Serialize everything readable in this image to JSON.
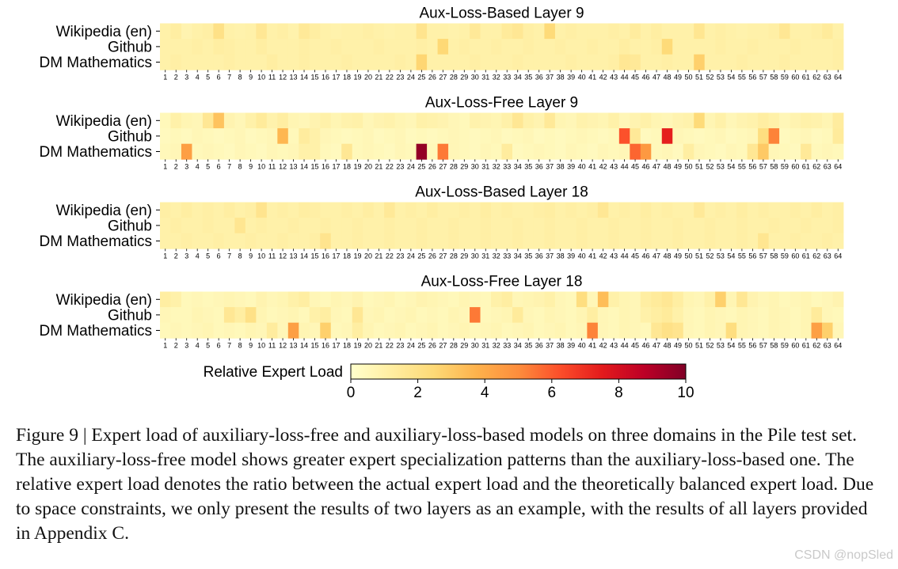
{
  "chart_data": {
    "type": "heatmap",
    "colorbar": {
      "label": "Relative Expert Load",
      "range": [
        0,
        10
      ],
      "ticks": [
        "0",
        "2",
        "4",
        "6",
        "8",
        "10"
      ],
      "colormap": [
        "#ffffcc",
        "#ffeda0",
        "#fed976",
        "#feb24c",
        "#fd8d3c",
        "#fc4e2a",
        "#e31a1c",
        "#bd0026",
        "#800026"
      ]
    },
    "domains": [
      "Wikipedia (en)",
      "Github",
      "DM Mathematics"
    ],
    "experts": [
      "1",
      "2",
      "3",
      "4",
      "5",
      "6",
      "7",
      "8",
      "9",
      "10",
      "11",
      "12",
      "13",
      "14",
      "15",
      "16",
      "17",
      "18",
      "19",
      "20",
      "21",
      "22",
      "23",
      "24",
      "25",
      "26",
      "27",
      "28",
      "29",
      "30",
      "31",
      "32",
      "33",
      "34",
      "35",
      "36",
      "37",
      "38",
      "39",
      "40",
      "41",
      "42",
      "43",
      "44",
      "45",
      "46",
      "47",
      "48",
      "49",
      "50",
      "51",
      "52",
      "53",
      "54",
      "55",
      "56",
      "57",
      "58",
      "59",
      "60",
      "61",
      "62",
      "63",
      "64"
    ],
    "panels": [
      {
        "title": "Aux-Loss-Based Layer 9",
        "values": [
          [
            1.0,
            1.2,
            0.8,
            1.0,
            1.1,
            2.0,
            1.0,
            0.9,
            1.0,
            1.6,
            1.0,
            1.1,
            0.9,
            1.5,
            1.2,
            1.0,
            0.9,
            1.0,
            1.0,
            1.1,
            1.0,
            0.9,
            1.0,
            1.0,
            1.8,
            1.0,
            1.0,
            0.9,
            1.0,
            1.5,
            1.0,
            1.0,
            1.4,
            1.6,
            1.1,
            1.0,
            2.4,
            1.0,
            1.1,
            1.0,
            1.0,
            1.0,
            1.1,
            1.0,
            1.3,
            1.0,
            1.2,
            1.0,
            1.0,
            1.0,
            1.7,
            1.0,
            1.1,
            1.0,
            0.9,
            1.0,
            1.0,
            1.1,
            1.6,
            1.0,
            1.0,
            1.1,
            1.4,
            1.0
          ],
          [
            1.0,
            1.0,
            1.0,
            1.1,
            1.0,
            1.2,
            1.1,
            1.0,
            1.0,
            1.2,
            1.0,
            1.0,
            1.0,
            1.1,
            1.0,
            1.0,
            1.1,
            1.0,
            1.0,
            1.0,
            1.1,
            1.0,
            1.0,
            1.0,
            1.1,
            1.0,
            2.5,
            1.0,
            1.1,
            1.0,
            1.0,
            1.1,
            1.0,
            1.0,
            1.1,
            1.0,
            1.0,
            1.1,
            1.0,
            1.0,
            1.1,
            1.0,
            1.0,
            1.2,
            1.0,
            1.0,
            1.1,
            2.4,
            1.0,
            1.0,
            1.0,
            1.0,
            1.1,
            1.0,
            1.0,
            1.1,
            1.0,
            1.0,
            1.0,
            1.1,
            1.0,
            1.0,
            1.0,
            1.1
          ],
          [
            1.0,
            1.1,
            1.0,
            1.0,
            1.0,
            1.0,
            1.1,
            1.0,
            1.0,
            1.0,
            1.2,
            1.0,
            1.0,
            1.1,
            1.0,
            1.0,
            1.0,
            1.1,
            1.0,
            1.0,
            1.0,
            1.0,
            1.1,
            1.0,
            2.6,
            1.0,
            1.0,
            1.0,
            1.0,
            1.1,
            1.0,
            1.0,
            1.0,
            1.1,
            1.0,
            1.0,
            1.0,
            1.0,
            1.1,
            1.0,
            1.0,
            1.0,
            1.1,
            1.6,
            1.5,
            1.0,
            1.0,
            1.1,
            1.0,
            1.0,
            2.8,
            1.0,
            1.0,
            1.0,
            1.1,
            1.0,
            1.0,
            1.0,
            1.1,
            1.0,
            1.0,
            1.0,
            1.0,
            1.1
          ]
        ]
      },
      {
        "title": "Aux-Loss-Free Layer 9",
        "values": [
          [
            0.5,
            1.0,
            0.7,
            0.6,
            1.6,
            3.2,
            0.8,
            0.6,
            1.0,
            1.4,
            0.9,
            1.2,
            0.7,
            0.6,
            0.8,
            1.0,
            0.7,
            0.9,
            1.0,
            0.6,
            0.8,
            0.9,
            0.7,
            0.6,
            1.0,
            0.9,
            0.8,
            0.6,
            0.5,
            0.9,
            0.8,
            0.7,
            1.0,
            1.6,
            1.0,
            0.8,
            1.5,
            0.7,
            0.6,
            0.9,
            0.8,
            0.7,
            1.0,
            0.6,
            0.8,
            1.0,
            0.7,
            0.6,
            0.8,
            0.9,
            2.4,
            0.7,
            1.0,
            0.6,
            0.8,
            0.9,
            1.2,
            1.0,
            0.6,
            0.8,
            1.0,
            0.9,
            0.7,
            1.3
          ],
          [
            0.4,
            0.5,
            0.4,
            0.6,
            0.5,
            0.4,
            0.5,
            0.6,
            0.4,
            0.5,
            0.6,
            3.6,
            0.5,
            1.3,
            1.0,
            0.6,
            0.5,
            0.4,
            0.5,
            0.6,
            0.4,
            0.5,
            0.6,
            0.4,
            0.5,
            0.4,
            0.5,
            0.6,
            0.5,
            0.4,
            0.5,
            0.6,
            0.4,
            0.5,
            0.6,
            0.4,
            0.5,
            0.4,
            0.5,
            0.6,
            0.5,
            0.4,
            0.5,
            6.2,
            1.5,
            0.4,
            0.5,
            7.4,
            0.6,
            0.5,
            0.4,
            0.5,
            0.6,
            0.4,
            0.5,
            0.6,
            2.2,
            5.2,
            0.4,
            0.5,
            0.6,
            0.4,
            0.5,
            1.4
          ],
          [
            0.5,
            0.6,
            4.4,
            0.5,
            0.6,
            0.5,
            0.4,
            0.6,
            0.5,
            0.4,
            0.6,
            0.5,
            0.6,
            1.0,
            1.0,
            0.5,
            0.4,
            1.6,
            0.5,
            0.6,
            0.5,
            0.4,
            0.6,
            0.5,
            9.6,
            0.5,
            5.4,
            0.6,
            0.5,
            0.4,
            0.6,
            0.5,
            1.3,
            0.4,
            0.5,
            0.6,
            0.5,
            0.4,
            0.6,
            0.5,
            0.4,
            0.6,
            0.5,
            0.6,
            5.8,
            4.6,
            0.5,
            0.6,
            0.4,
            1.2,
            0.6,
            0.5,
            0.4,
            0.6,
            0.5,
            1.6,
            3.0,
            0.6,
            0.5,
            0.4,
            1.5,
            0.5,
            0.6,
            0.5
          ]
        ]
      },
      {
        "title": "Aux-Loss-Based Layer 18",
        "values": [
          [
            1.1,
            1.0,
            1.2,
            1.0,
            1.1,
            1.0,
            1.2,
            1.0,
            1.1,
            1.8,
            1.0,
            1.1,
            1.0,
            1.2,
            1.1,
            1.0,
            1.0,
            1.1,
            1.0,
            1.2,
            1.0,
            1.5,
            1.0,
            1.1,
            1.0,
            1.2,
            1.0,
            1.0,
            1.1,
            1.0,
            1.2,
            1.0,
            1.1,
            1.0,
            1.0,
            1.1,
            1.2,
            1.0,
            1.1,
            1.0,
            1.1,
            1.6,
            1.0,
            1.1,
            1.0,
            1.2,
            1.0,
            1.1,
            1.0,
            1.0,
            1.5,
            1.0,
            1.1,
            1.0,
            1.2,
            1.0,
            1.1,
            1.0,
            1.0,
            1.1,
            1.0,
            1.2,
            1.0,
            1.1
          ],
          [
            1.0,
            1.1,
            1.0,
            1.0,
            1.1,
            1.0,
            1.0,
            1.7,
            1.0,
            1.1,
            1.0,
            1.0,
            1.1,
            1.0,
            1.0,
            1.1,
            1.0,
            1.0,
            1.1,
            1.0,
            1.0,
            1.1,
            1.0,
            1.0,
            1.1,
            1.0,
            1.0,
            1.1,
            1.0,
            1.0,
            1.1,
            1.0,
            1.0,
            1.1,
            1.0,
            1.0,
            1.1,
            1.0,
            1.0,
            1.1,
            1.0,
            1.0,
            1.1,
            1.0,
            1.0,
            1.1,
            1.0,
            1.0,
            1.1,
            1.0,
            1.0,
            1.1,
            1.0,
            1.0,
            1.1,
            1.0,
            1.0,
            1.1,
            1.0,
            1.0,
            1.1,
            1.0,
            1.0,
            1.1
          ],
          [
            1.0,
            1.0,
            1.1,
            1.0,
            1.0,
            1.1,
            1.0,
            1.0,
            1.1,
            1.0,
            1.0,
            1.1,
            1.0,
            1.0,
            1.1,
            1.8,
            1.0,
            1.0,
            1.1,
            1.0,
            1.0,
            1.1,
            1.0,
            1.0,
            1.1,
            1.0,
            1.0,
            1.1,
            1.0,
            1.0,
            1.1,
            1.0,
            1.0,
            1.1,
            1.0,
            1.0,
            1.1,
            1.0,
            1.0,
            1.1,
            1.0,
            1.0,
            1.1,
            1.0,
            1.0,
            1.1,
            1.0,
            1.0,
            1.1,
            1.0,
            1.0,
            1.1,
            1.0,
            1.0,
            1.1,
            1.0,
            1.7,
            1.0,
            1.0,
            1.1,
            1.0,
            1.0,
            1.1,
            1.0
          ]
        ]
      },
      {
        "title": "Aux-Loss-Free Layer 18",
        "values": [
          [
            1.2,
            1.0,
            0.5,
            0.6,
            0.5,
            0.6,
            0.7,
            0.6,
            0.5,
            0.8,
            0.6,
            0.7,
            1.0,
            1.2,
            0.6,
            0.5,
            0.7,
            0.6,
            0.8,
            0.5,
            0.6,
            0.7,
            0.5,
            0.6,
            0.8,
            0.7,
            0.6,
            0.5,
            0.7,
            0.6,
            0.5,
            1.0,
            1.2,
            0.6,
            0.7,
            0.8,
            1.0,
            0.6,
            0.5,
            2.2,
            0.6,
            3.4,
            1.0,
            0.7,
            0.6,
            1.2,
            1.4,
            1.6,
            1.2,
            0.7,
            0.6,
            1.0,
            2.8,
            0.7,
            1.6,
            0.8,
            0.6,
            0.7,
            0.5,
            0.6,
            0.7,
            0.5,
            0.6,
            0.8
          ],
          [
            0.6,
            0.5,
            0.5,
            0.7,
            0.6,
            0.5,
            1.6,
            1.2,
            2.0,
            0.7,
            0.5,
            0.6,
            0.7,
            0.5,
            1.0,
            1.2,
            0.6,
            0.5,
            1.6,
            0.6,
            0.7,
            0.5,
            0.6,
            0.7,
            0.5,
            0.6,
            0.5,
            0.7,
            0.6,
            5.4,
            0.5,
            0.6,
            0.7,
            1.4,
            0.6,
            0.5,
            0.7,
            0.6,
            0.5,
            0.7,
            1.2,
            0.6,
            0.5,
            0.7,
            0.6,
            1.0,
            1.2,
            1.4,
            1.0,
            0.6,
            0.5,
            0.7,
            0.6,
            0.5,
            0.7,
            0.6,
            0.5,
            0.7,
            0.6,
            0.5,
            0.7,
            1.4,
            0.6,
            0.5
          ],
          [
            0.5,
            0.6,
            0.5,
            0.6,
            0.7,
            0.5,
            0.6,
            0.5,
            0.7,
            0.6,
            1.3,
            0.6,
            4.4,
            0.7,
            0.6,
            2.8,
            0.5,
            0.6,
            1.2,
            0.7,
            0.5,
            0.6,
            0.7,
            0.5,
            0.6,
            0.7,
            0.5,
            0.6,
            0.7,
            0.5,
            0.6,
            0.7,
            0.5,
            0.6,
            0.7,
            0.5,
            0.6,
            0.7,
            0.5,
            0.6,
            5.2,
            0.6,
            0.5,
            0.7,
            0.6,
            0.5,
            1.6,
            2.0,
            1.8,
            0.6,
            0.5,
            0.7,
            0.6,
            2.2,
            0.7,
            0.6,
            0.5,
            0.7,
            0.6,
            0.5,
            0.7,
            4.4,
            2.8,
            0.6
          ]
        ]
      }
    ]
  },
  "caption": "Figure 9 | Expert load of auxiliary-loss-free and auxiliary-loss-based models on three domains in the Pile test set. The auxiliary-loss-free model shows greater expert specialization patterns than the auxiliary-loss-based one. The relative expert load denotes the ratio between the actual expert load and the theoretically balanced expert load. Due to space constraints, we only present the results of two layers as an example, with the results of all layers provided in Appendix C.",
  "watermark": "CSDN @nopSled"
}
